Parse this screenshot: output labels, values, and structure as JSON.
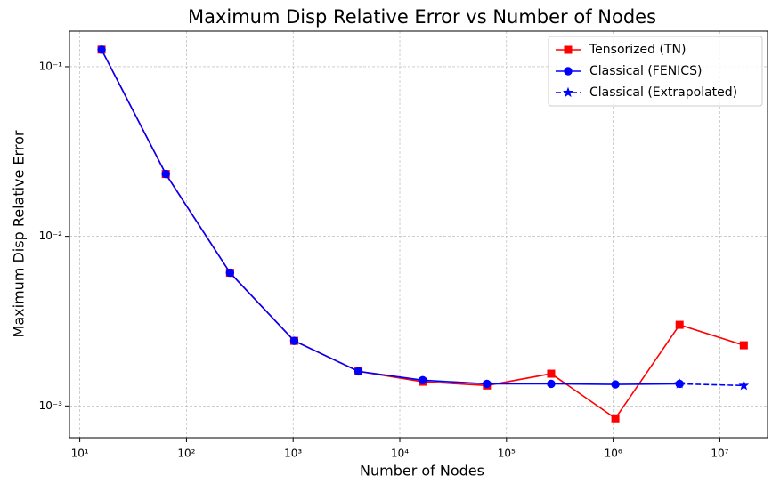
{
  "chart_data": {
    "type": "line",
    "title": "Maximum Disp Relative Error vs Number of Nodes",
    "xlabel": "Number of Nodes",
    "ylabel": "Maximum Disp Relative Error",
    "x": [
      16,
      64,
      256,
      1024,
      4096,
      16384,
      65536,
      262144,
      1048576,
      4194304,
      16777216
    ],
    "series": [
      {
        "name": "Tensorized (TN)",
        "color": "#ff0000",
        "marker": "square",
        "linestyle": "solid",
        "values": [
          0.126,
          0.0233,
          0.0061,
          0.00242,
          0.0016,
          0.00139,
          0.00132,
          0.00155,
          0.000845,
          0.00301,
          0.00228
        ]
      },
      {
        "name": "Classical (FENICS)",
        "color": "#0000ff",
        "marker": "circle",
        "linestyle": "solid",
        "values": [
          0.126,
          0.0233,
          0.0061,
          0.00242,
          0.0016,
          0.00142,
          0.00135,
          0.00135,
          0.00134,
          0.00135,
          null
        ]
      },
      {
        "name": "Classical (Extrapolated)",
        "color": "#0000ff",
        "marker": "star",
        "linestyle": "dashed",
        "values": [
          null,
          null,
          null,
          null,
          null,
          null,
          null,
          null,
          null,
          0.00135,
          0.00132
        ]
      }
    ],
    "xscale": "log",
    "yscale": "log",
    "xlim": [
      8,
      28000000
    ],
    "ylim": [
      0.00065,
      0.162
    ],
    "xticks": [
      {
        "value": 10,
        "label": "10¹"
      },
      {
        "value": 100,
        "label": "10²"
      },
      {
        "value": 1000,
        "label": "10³"
      },
      {
        "value": 10000,
        "label": "10⁴"
      },
      {
        "value": 100000,
        "label": "10⁵"
      },
      {
        "value": 1000000,
        "label": "10⁶"
      },
      {
        "value": 10000000,
        "label": "10⁷"
      }
    ],
    "yticks": [
      {
        "value": 0.1,
        "label": "10⁻¹"
      },
      {
        "value": 0.01,
        "label": "10⁻²"
      },
      {
        "value": 0.001,
        "label": "10⁻³"
      }
    ],
    "grid": true,
    "legend": "upper right"
  }
}
